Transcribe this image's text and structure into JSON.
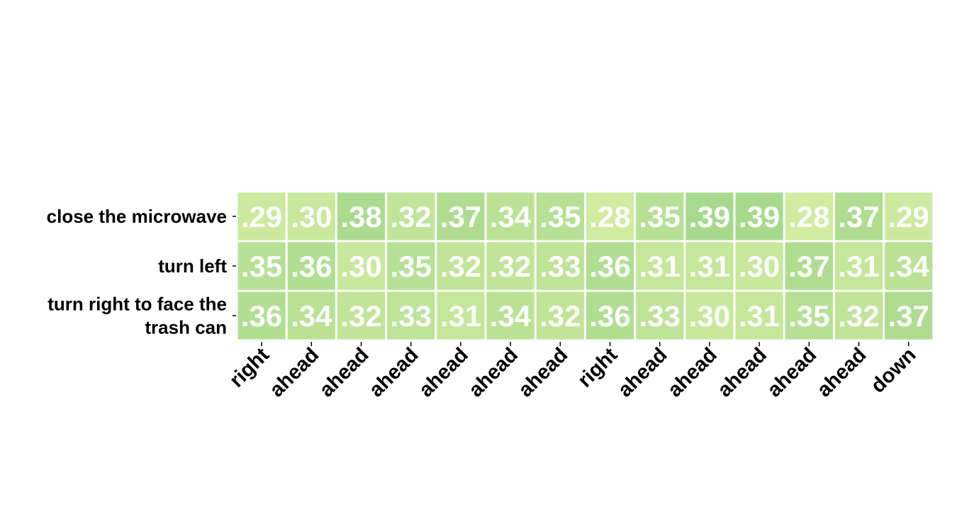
{
  "chart_data": {
    "type": "heatmap",
    "title": "",
    "xlabel": "",
    "ylabel": "",
    "rows": [
      [
        "close the microwave"
      ],
      [
        "turn left"
      ],
      [
        "turn right to face the",
        "trash can"
      ]
    ],
    "columns": [
      "right",
      "ahead",
      "ahead",
      "ahead",
      "ahead",
      "ahead",
      "ahead",
      "right",
      "ahead",
      "ahead",
      "ahead",
      "ahead",
      "ahead",
      "down"
    ],
    "values": [
      [
        0.29,
        0.3,
        0.38,
        0.32,
        0.37,
        0.34,
        0.35,
        0.28,
        0.35,
        0.39,
        0.39,
        0.28,
        0.37,
        0.29
      ],
      [
        0.35,
        0.36,
        0.3,
        0.35,
        0.32,
        0.32,
        0.33,
        0.36,
        0.31,
        0.31,
        0.3,
        0.37,
        0.31,
        0.34
      ],
      [
        0.36,
        0.34,
        0.32,
        0.33,
        0.31,
        0.34,
        0.32,
        0.36,
        0.33,
        0.3,
        0.31,
        0.35,
        0.32,
        0.37
      ]
    ],
    "value_format": "decimal without leading zero",
    "color_range": [
      0.28,
      0.39
    ],
    "colors": {
      "low": "#d0ec9f",
      "high": "#a6da8d",
      "cell_border": "#ffffff",
      "cell_text": "#ffffff",
      "axis_text": "#000000"
    },
    "legend": "none",
    "grid": false
  }
}
